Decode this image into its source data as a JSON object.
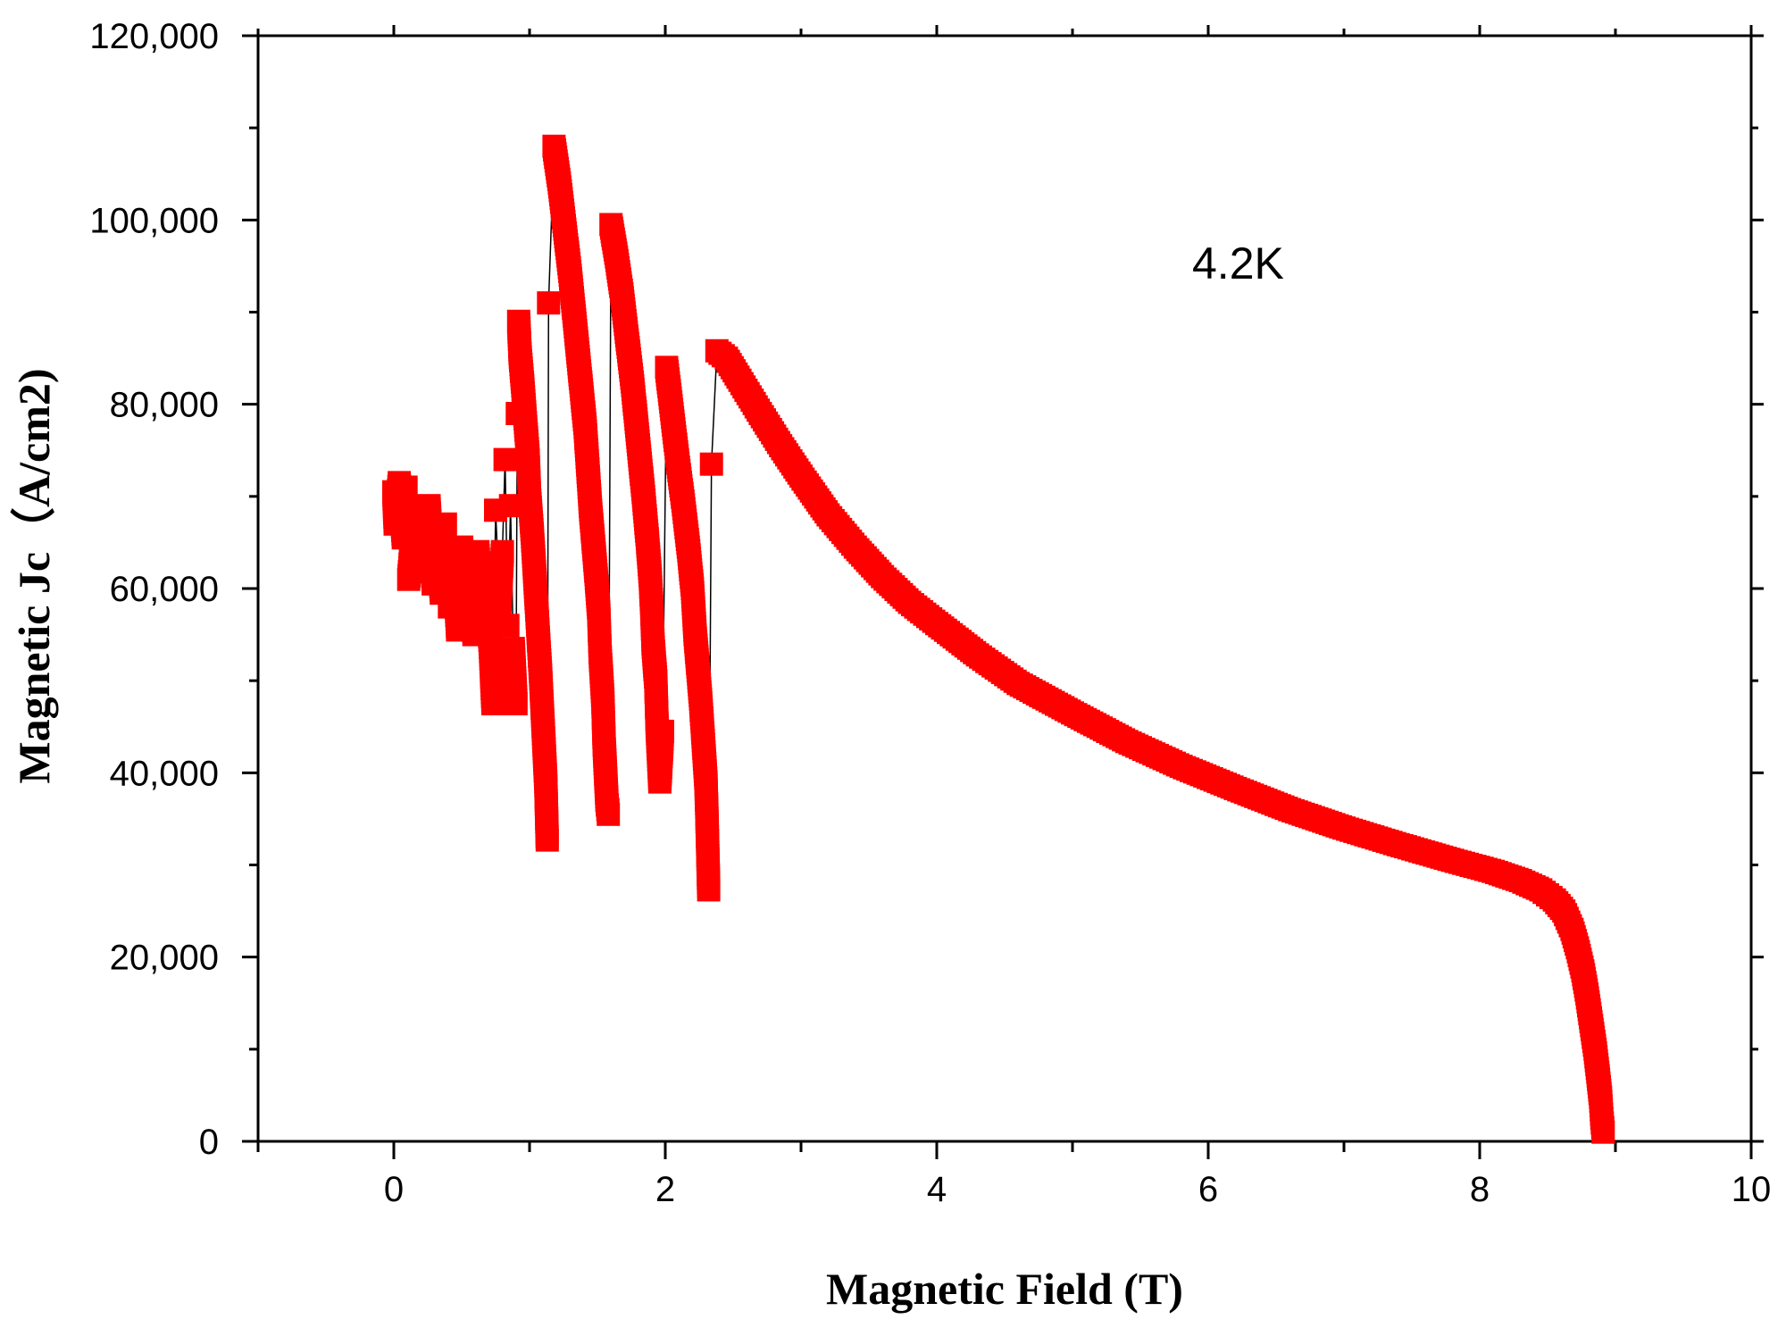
{
  "chart_data": {
    "type": "scatter",
    "title": "",
    "xlabel": "Magnetic Field (T)",
    "ylabel": "Magnetic Jc（A/cm2)",
    "annotation": "4.2K",
    "xlim": [
      -1,
      10
    ],
    "ylim": [
      0,
      120000
    ],
    "x_ticks": [
      0,
      2,
      4,
      6,
      8,
      10
    ],
    "x_tick_labels": [
      "0",
      "2",
      "4",
      "6",
      "8",
      "10"
    ],
    "y_ticks": [
      0,
      20000,
      40000,
      60000,
      80000,
      100000,
      120000
    ],
    "y_tick_labels": [
      "0",
      "20,000",
      "40,000",
      "60,000",
      "80,000",
      "100,000",
      "120,000"
    ],
    "grid": false,
    "marker": "square",
    "marker_color": "#ff0000",
    "line_color": "#000000",
    "series": [
      {
        "name": "4.2K",
        "points": [
          [
            0.0,
            70500
          ],
          [
            0.01,
            67000
          ],
          [
            0.04,
            71500
          ],
          [
            0.07,
            65500
          ],
          [
            0.09,
            71000
          ],
          [
            0.11,
            61000
          ],
          [
            0.14,
            66000
          ],
          [
            0.17,
            62000
          ],
          [
            0.2,
            68000
          ],
          [
            0.23,
            64000
          ],
          [
            0.26,
            69000
          ],
          [
            0.29,
            60500
          ],
          [
            0.32,
            65000
          ],
          [
            0.35,
            59500
          ],
          [
            0.38,
            67000
          ],
          [
            0.41,
            58000
          ],
          [
            0.44,
            63500
          ],
          [
            0.47,
            55500
          ],
          [
            0.5,
            64500
          ],
          [
            0.53,
            57000
          ],
          [
            0.56,
            61500
          ],
          [
            0.59,
            55000
          ],
          [
            0.62,
            64000
          ],
          [
            0.65,
            57500
          ],
          [
            0.68,
            60000
          ],
          [
            0.71,
            54000
          ],
          [
            0.73,
            47500
          ],
          [
            0.75,
            68500
          ],
          [
            0.78,
            58000
          ],
          [
            0.8,
            64000
          ],
          [
            0.82,
            74000
          ],
          [
            0.84,
            56000
          ],
          [
            0.86,
            69000
          ],
          [
            0.88,
            53500
          ],
          [
            0.9,
            47500
          ],
          [
            0.91,
            79000
          ],
          [
            0.92,
            89000
          ],
          [
            0.93,
            85500
          ],
          [
            0.95,
            82000
          ],
          [
            0.97,
            78000
          ],
          [
            0.99,
            74000
          ],
          [
            1.0,
            70000
          ],
          [
            1.02,
            66000
          ],
          [
            1.04,
            61000
          ],
          [
            1.06,
            56000
          ],
          [
            1.08,
            51000
          ],
          [
            1.1,
            45000
          ],
          [
            1.12,
            39000
          ],
          [
            1.13,
            32700
          ],
          [
            1.14,
            91000
          ],
          [
            1.18,
            108000
          ],
          [
            1.22,
            104000
          ],
          [
            1.26,
            99000
          ],
          [
            1.3,
            94000
          ],
          [
            1.34,
            88000
          ],
          [
            1.38,
            82000
          ],
          [
            1.41,
            77500
          ],
          [
            1.43,
            73000
          ],
          [
            1.45,
            68500
          ],
          [
            1.47,
            65000
          ],
          [
            1.49,
            61500
          ],
          [
            1.51,
            57500
          ],
          [
            1.52,
            53000
          ],
          [
            1.54,
            48000
          ],
          [
            1.55,
            43000
          ],
          [
            1.57,
            37000
          ],
          [
            1.58,
            35500
          ],
          [
            1.6,
            99500
          ],
          [
            1.64,
            96000
          ],
          [
            1.68,
            92000
          ],
          [
            1.72,
            87000
          ],
          [
            1.76,
            82000
          ],
          [
            1.8,
            76000
          ],
          [
            1.84,
            70000
          ],
          [
            1.87,
            65000
          ],
          [
            1.89,
            61000
          ],
          [
            1.9,
            58000
          ],
          [
            1.91,
            54000
          ],
          [
            1.93,
            50000
          ],
          [
            1.94,
            45000
          ],
          [
            1.96,
            39000
          ],
          [
            1.98,
            44500
          ],
          [
            2.01,
            84000
          ],
          [
            2.05,
            79000
          ],
          [
            2.09,
            74000
          ],
          [
            2.13,
            69500
          ],
          [
            2.17,
            64500
          ],
          [
            2.2,
            60000
          ],
          [
            2.22,
            55000
          ],
          [
            2.24,
            51500
          ],
          [
            2.26,
            48000
          ],
          [
            2.28,
            43500
          ],
          [
            2.3,
            39000
          ],
          [
            2.31,
            33500
          ],
          [
            2.32,
            27300
          ],
          [
            2.34,
            73500
          ],
          [
            2.38,
            85800
          ],
          [
            2.45,
            85000
          ],
          [
            2.55,
            82600
          ],
          [
            2.7,
            79000
          ],
          [
            2.85,
            75500
          ],
          [
            3.0,
            72200
          ],
          [
            3.2,
            68000
          ],
          [
            3.4,
            64500
          ],
          [
            3.6,
            61300
          ],
          [
            3.8,
            58500
          ],
          [
            4.0,
            56200
          ],
          [
            4.3,
            52800
          ],
          [
            4.6,
            49700
          ],
          [
            5.0,
            46500
          ],
          [
            5.4,
            43400
          ],
          [
            5.8,
            40700
          ],
          [
            6.2,
            38300
          ],
          [
            6.6,
            36000
          ],
          [
            7.0,
            34000
          ],
          [
            7.4,
            32200
          ],
          [
            7.8,
            30500
          ],
          [
            8.1,
            29300
          ],
          [
            8.3,
            28300
          ],
          [
            8.45,
            27300
          ],
          [
            8.55,
            26200
          ],
          [
            8.62,
            25000
          ],
          [
            8.68,
            23000
          ],
          [
            8.72,
            21000
          ],
          [
            8.76,
            18500
          ],
          [
            8.79,
            16000
          ],
          [
            8.82,
            13000
          ],
          [
            8.85,
            10000
          ],
          [
            8.87,
            7500
          ],
          [
            8.89,
            4800
          ],
          [
            8.9,
            2500
          ],
          [
            8.91,
            1000
          ]
        ]
      }
    ]
  }
}
